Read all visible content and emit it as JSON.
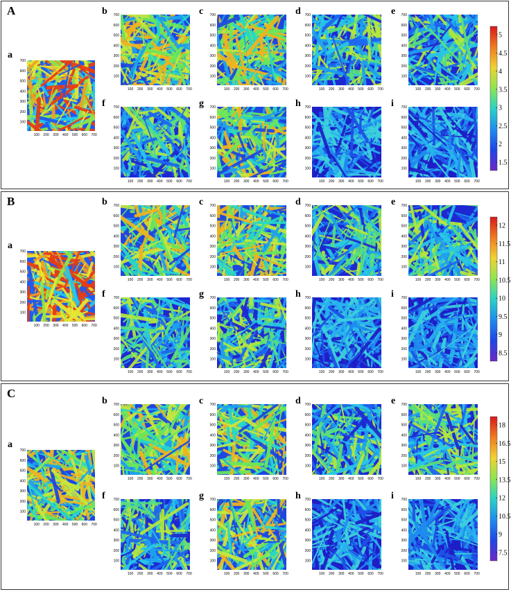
{
  "sections": [
    {
      "label": "A",
      "colorbar": {
        "ticks": [
          "5",
          "4.5",
          "4",
          "3.5",
          "3",
          "2.5",
          "2",
          "1.5"
        ]
      },
      "panels": [
        {
          "label": "a",
          "palette": "hot"
        },
        {
          "label": "b",
          "palette": "warm"
        },
        {
          "label": "c",
          "palette": "warm"
        },
        {
          "label": "d",
          "palette": "cool"
        },
        {
          "label": "e",
          "palette": "cool"
        },
        {
          "label": "f",
          "palette": "cool"
        },
        {
          "label": "g",
          "palette": "warm"
        },
        {
          "label": "h",
          "palette": "cold"
        },
        {
          "label": "i",
          "palette": "cold"
        }
      ]
    },
    {
      "label": "B",
      "colorbar": {
        "ticks": [
          "12",
          "11.5",
          "11",
          "10.5",
          "10",
          "9.5",
          "9",
          "8.5"
        ]
      },
      "panels": [
        {
          "label": "a",
          "palette": "hot"
        },
        {
          "label": "b",
          "palette": "warm"
        },
        {
          "label": "c",
          "palette": "warm"
        },
        {
          "label": "d",
          "palette": "cool"
        },
        {
          "label": "e",
          "palette": "cool"
        },
        {
          "label": "f",
          "palette": "cool"
        },
        {
          "label": "g",
          "palette": "cool"
        },
        {
          "label": "h",
          "palette": "cold"
        },
        {
          "label": "i",
          "palette": "cold"
        }
      ]
    },
    {
      "label": "C",
      "colorbar": {
        "ticks": [
          "18",
          "16.5",
          "15",
          "13.5",
          "12",
          "10.5",
          "9",
          "7.5"
        ]
      },
      "panels": [
        {
          "label": "a",
          "palette": "warm"
        },
        {
          "label": "b",
          "palette": "warm"
        },
        {
          "label": "c",
          "palette": "warm"
        },
        {
          "label": "d",
          "palette": "cool"
        },
        {
          "label": "e",
          "palette": "cool"
        },
        {
          "label": "f",
          "palette": "cool"
        },
        {
          "label": "g",
          "palette": "warm"
        },
        {
          "label": "h",
          "palette": "cold"
        },
        {
          "label": "i",
          "palette": "cold"
        }
      ]
    }
  ],
  "axis": {
    "x_ticks": [
      "100",
      "200",
      "300",
      "400",
      "500",
      "600",
      "700"
    ],
    "y_ticks": [
      "700",
      "600",
      "500",
      "400",
      "300",
      "200",
      "100"
    ]
  },
  "colors": {
    "palette_hot": [
      "#1e5af0",
      "#22c8f0",
      "#8ae84a",
      "#e8e832",
      "#f0a020",
      "#e83c14"
    ],
    "palette_warm": [
      "#1e46e0",
      "#1ea0f0",
      "#28d8c8",
      "#6ae85a",
      "#c8e83c",
      "#f0b41e"
    ],
    "palette_cool": [
      "#1e28d2",
      "#1e64f0",
      "#1ea0f0",
      "#28c8e6",
      "#5ae07a",
      "#b4e83c"
    ],
    "palette_cold": [
      "#1e1ec8",
      "#1e50e6",
      "#1e8cf0",
      "#28b4f0",
      "#3cd2dc"
    ],
    "colorbar_stops": [
      "#d7191c",
      "#f07c1e",
      "#f0d232",
      "#8ce650",
      "#28d2c8",
      "#1e8cf0",
      "#1e46e6",
      "#6e28c8"
    ]
  }
}
